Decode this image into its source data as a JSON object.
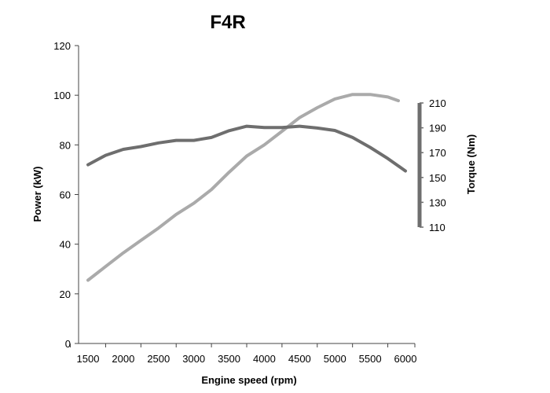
{
  "chart_data": {
    "type": "line",
    "title": "F4R",
    "xlabel": "Engine speed (rpm)",
    "ylabel": "Power (kW)",
    "y2label": "Torque (Nm)",
    "xlim": [
      1500,
      6000
    ],
    "ylim": [
      0,
      120
    ],
    "y2lim": [
      110,
      210
    ],
    "x_ticks": [
      1500,
      2000,
      2500,
      3000,
      3500,
      4000,
      4500,
      5000,
      5500,
      6000
    ],
    "y_ticks": [
      0,
      20,
      40,
      60,
      80,
      100,
      120
    ],
    "y2_ticks": [
      110,
      130,
      150,
      170,
      190,
      210
    ],
    "grid": false,
    "legend": "none",
    "series": [
      {
        "color": "#aaaaaa",
        "axis": "left",
        "x": [
          1500,
          1750,
          2000,
          2250,
          2500,
          2750,
          3000,
          3250,
          3500,
          3750,
          4000,
          4250,
          4500,
          4750,
          5000,
          5250,
          5500,
          5750,
          5900
        ],
        "values": [
          25.5,
          31,
          36.5,
          41.5,
          46.5,
          52,
          56.5,
          62,
          69,
          75.5,
          80,
          85.5,
          91,
          95,
          98.5,
          100.3,
          100.3,
          99.3,
          97.8
        ]
      },
      {
        "color": "#6e6e6e",
        "axis": "left",
        "x": [
          1500,
          1750,
          2000,
          2250,
          2500,
          2750,
          3000,
          3250,
          3500,
          3750,
          4000,
          4250,
          4500,
          4750,
          5000,
          5250,
          5500,
          5750,
          6000
        ],
        "values": [
          72,
          75.8,
          78.2,
          79.3,
          80.8,
          81.8,
          81.8,
          83,
          85.7,
          87.5,
          87,
          87,
          87.5,
          86.8,
          85.8,
          83,
          79,
          74.5,
          69.5
        ]
      }
    ]
  }
}
